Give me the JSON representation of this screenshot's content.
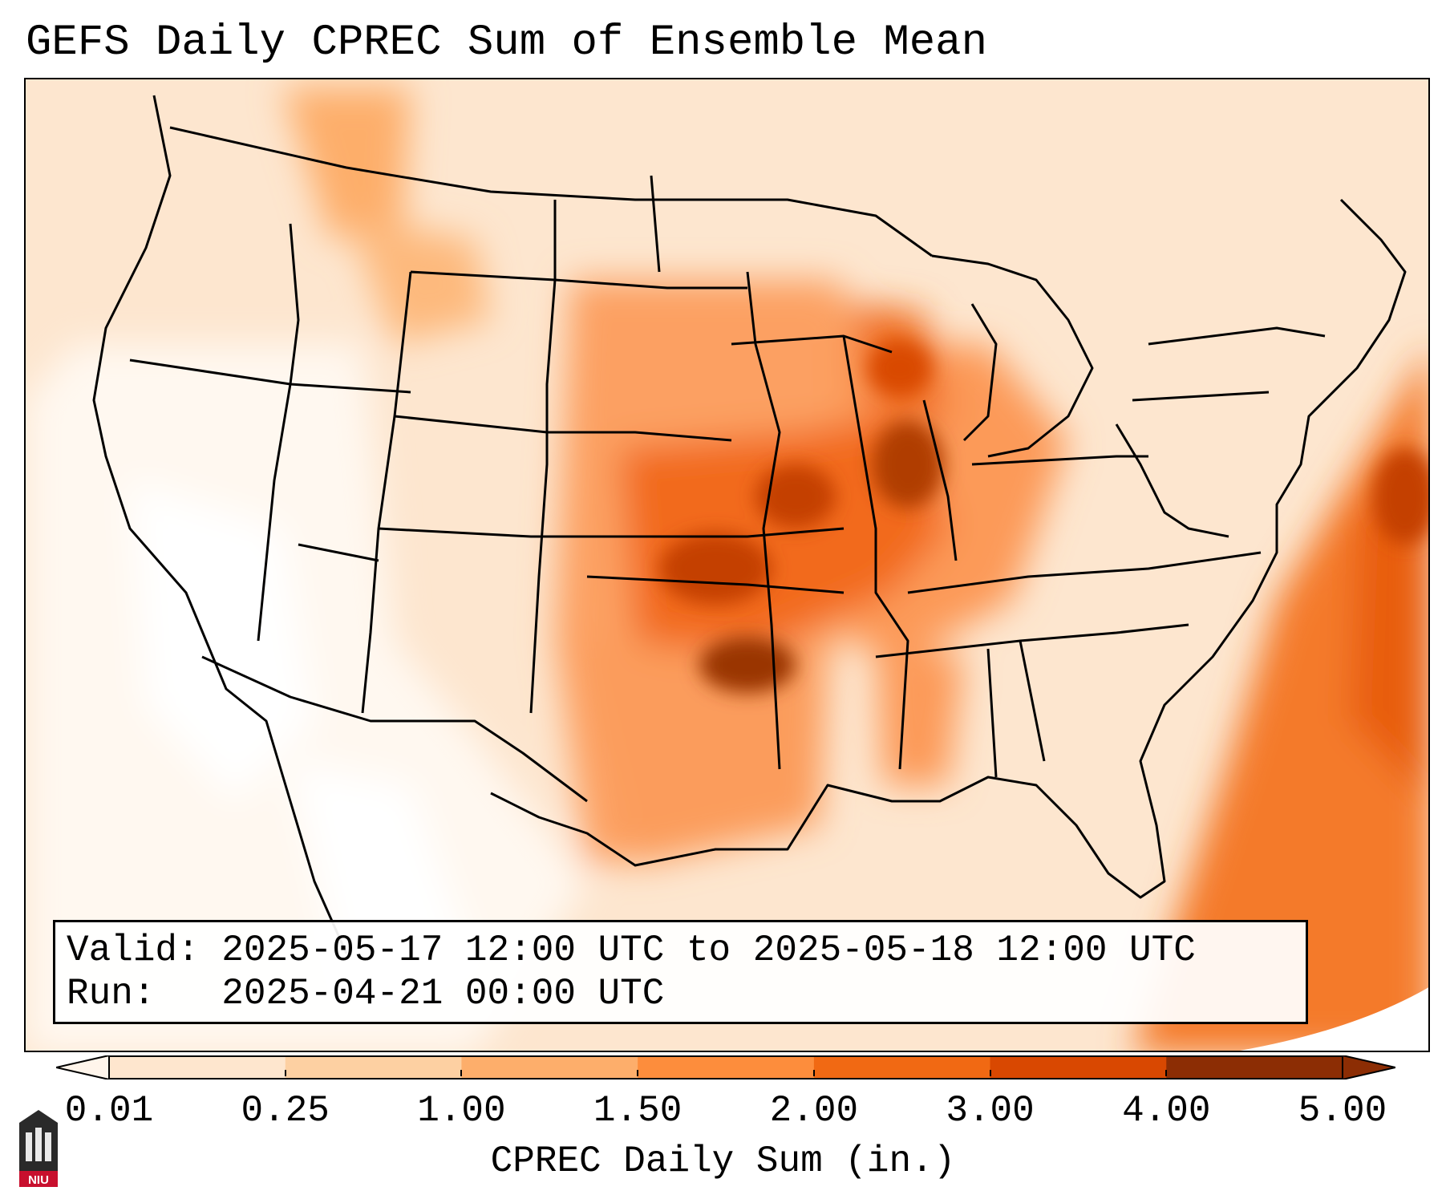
{
  "title": "GEFS Daily CPREC Sum of Ensemble Mean",
  "info": {
    "valid_label": "Valid:",
    "valid_value": "2025-05-17 12:00 UTC to 2025-05-18 12:00 UTC",
    "run_label": "Run:",
    "run_value": "2025-04-21 00:00 UTC"
  },
  "colorbar": {
    "ticks": [
      "0.01",
      "0.25",
      "1.00",
      "1.50",
      "2.00",
      "3.00",
      "4.00",
      "5.00"
    ],
    "colors": [
      "#fff5eb",
      "#fee6ce",
      "#fdd0a2",
      "#fdae6b",
      "#fd8d3c",
      "#f16913",
      "#d94801",
      "#8c2d04"
    ],
    "label": "CPREC Daily Sum (in.)"
  },
  "map": {
    "region": "Contiguous United States",
    "variable": "CPREC daily sum (in.)",
    "max_value_region": "Oklahoma / Kansas / Missouri / Iowa / Illinois"
  },
  "logo": {
    "text": "NIU",
    "color": "#c8102e"
  }
}
